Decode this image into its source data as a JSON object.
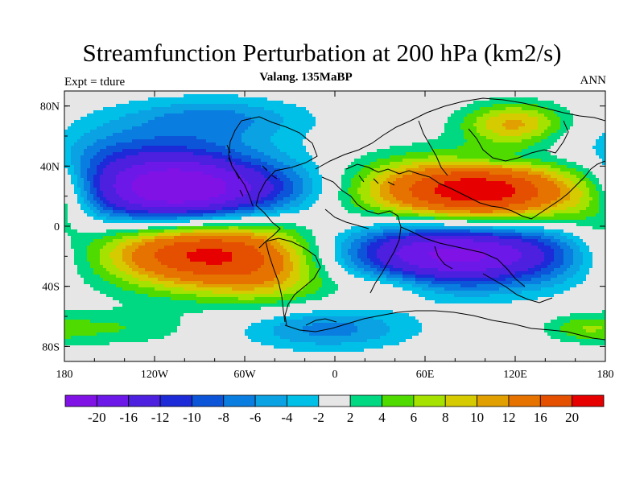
{
  "header": {
    "title": "Streamfunction Perturbation at 200 hPa (km2/s)",
    "subtitle": "Valang. 135MaBP",
    "left_label": "Expt = tdure",
    "right_label": "ANN"
  },
  "axes": {
    "lon_range": [
      -180,
      180
    ],
    "lat_range": [
      -90,
      90
    ],
    "x_ticks": [
      "180",
      "120W",
      "60W",
      "0",
      "60E",
      "120E",
      "180"
    ],
    "x_tick_values": [
      -180,
      -120,
      -60,
      0,
      60,
      120,
      180
    ],
    "y_ticks": [
      "80N",
      "40N",
      "0",
      "40S",
      "80S"
    ],
    "y_tick_values": [
      80,
      40,
      0,
      -40,
      -80
    ]
  },
  "colorbar": {
    "colors": [
      "#8012e6",
      "#6b18e8",
      "#4d1fdf",
      "#1c2ad8",
      "#0c55d8",
      "#0a7ee0",
      "#0aa2e3",
      "#00c0e8",
      "#e6e6e6",
      "#00d882",
      "#4fdb00",
      "#a5e200",
      "#d5cb00",
      "#e1a000",
      "#e67200",
      "#e44f00",
      "#e60000"
    ],
    "labels": [
      "-20",
      "-16",
      "-12",
      "-10",
      "-8",
      "-6",
      "-4",
      "-2",
      "2",
      "4",
      "6",
      "8",
      "10",
      "12",
      "16",
      "20"
    ]
  },
  "blobs": [
    {
      "lon": -145,
      "lat": 50,
      "rlon": 90,
      "rlat": 22,
      "peak": -5
    },
    {
      "lon": -80,
      "lat": 72,
      "rlon": 60,
      "rlat": 14,
      "peak": -6
    },
    {
      "lon": -105,
      "lat": 23,
      "rlon": 70,
      "rlat": 24,
      "peak": -25
    },
    {
      "lon": -85,
      "lat": -17,
      "rlon": 75,
      "rlat": 24,
      "peak": 22
    },
    {
      "lon": -40,
      "lat": -38,
      "rlon": 45,
      "rlat": 18,
      "peak": 5
    },
    {
      "lon": -30,
      "lat": 25,
      "rlon": 35,
      "rlat": 15,
      "peak": -2.5
    },
    {
      "lon": 95,
      "lat": 23,
      "rlon": 75,
      "rlat": 22,
      "peak": 24
    },
    {
      "lon": 120,
      "lat": 68,
      "rlon": 35,
      "rlat": 14,
      "peak": 11
    },
    {
      "lon": 105,
      "lat": 44,
      "rlon": 30,
      "rlat": 6,
      "peak": -3
    },
    {
      "lon": 80,
      "lat": -18,
      "rlon": 85,
      "rlat": 22,
      "peak": -22
    },
    {
      "lon": -5,
      "lat": -68,
      "rlon": 55,
      "rlat": 14,
      "peak": -7
    },
    {
      "lon": -150,
      "lat": -68,
      "rlon": 55,
      "rlat": 12,
      "peak": 4
    },
    {
      "lon": 165,
      "lat": -68,
      "rlon": 25,
      "rlat": 9,
      "peak": 4
    },
    {
      "lon": 175,
      "lat": 15,
      "rlon": 25,
      "rlat": 40,
      "peak": 4
    },
    {
      "lon": 35,
      "lat": -40,
      "rlon": 30,
      "rlat": 12,
      "peak": 4
    }
  ]
}
